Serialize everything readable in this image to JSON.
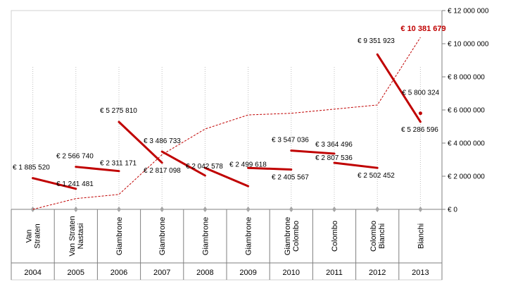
{
  "chart_data": {
    "type": "line",
    "years": [
      "2004",
      "2005",
      "2006",
      "2007",
      "2008",
      "2009",
      "2010",
      "2011",
      "2012",
      "2013"
    ],
    "categories": [
      [
        "Van",
        "Straten"
      ],
      [
        "Van Straten",
        "Nastasi"
      ],
      [
        "Giambrone"
      ],
      [
        "Giambrone"
      ],
      [
        "Giambrone"
      ],
      [
        "Giambrone"
      ],
      [
        "Giambrone",
        "Colombo"
      ],
      [
        "Colombo"
      ],
      [
        "Colombo",
        "Bianchi"
      ],
      [
        "Bianchi"
      ]
    ],
    "ylim": [
      0,
      12000000
    ],
    "y_ticks": [
      0,
      2000000,
      4000000,
      6000000,
      8000000,
      10000000,
      12000000
    ],
    "y_tick_labels": [
      "€ 0",
      "€ 2 000 000",
      "€ 4 000 000",
      "€ 6 000 000",
      "€ 8 000 000",
      "€ 10 000 000",
      "€ 12 000 000"
    ],
    "segments": [
      {
        "start": 1885520,
        "end": 1241481,
        "start_label": "€ 1 885 520",
        "end_label": "€ 1 241 481"
      },
      {
        "start": 2566740,
        "end": 2311171,
        "start_label": "€ 2 566 740",
        "end_label": "€ 2 311 171"
      },
      {
        "start": 5275810,
        "end": 2817098,
        "start_label": "€ 5 275 810",
        "end_label": "€ 2 817 098"
      },
      {
        "start": 3486733,
        "end": 2042578,
        "start_label": "€ 3 486 733",
        "end_label": "€ 2 042 578"
      },
      {
        "start": 2499618,
        "end": 1400000,
        "start_label": "€ 2 499 618",
        "end_label": ""
      },
      {
        "start": 2499618,
        "end": 2405567,
        "start_label": "",
        "end_label": "€ 2 405 567"
      },
      {
        "start": 3547036,
        "end": 3364496,
        "start_label": "€ 3 547 036",
        "end_label": "€ 3 364 496"
      },
      {
        "start": 2807536,
        "end": 2502452,
        "start_label": "€ 2 807 536",
        "end_label": "€ 2 502 452"
      },
      {
        "start": 9351923,
        "end": 5286596,
        "start_label": "€ 9 351 923",
        "end_label": "€ 5 286 596"
      }
    ],
    "cumulative": [
      0,
      650000,
      900000,
      3300000,
      4850000,
      5700000,
      5800000,
      6050000,
      6300000,
      10381679
    ],
    "cumulative_total_label": "€ 10 381 679",
    "marker": {
      "year_index": 9,
      "value": 5800324,
      "label": "€ 5 800 324"
    },
    "colors": {
      "segment": "#c00000",
      "cumulative": "#c00000",
      "grid": "#bfbfbf",
      "axis": "#7f7f7f"
    }
  }
}
